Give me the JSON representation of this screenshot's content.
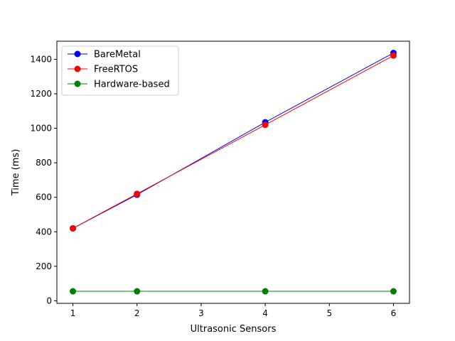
{
  "chart_data": {
    "type": "line",
    "title": "",
    "xlabel": "Ultrasonic Sensors",
    "ylabel": "Time (ms)",
    "xlim": [
      0.75,
      6.25
    ],
    "ylim": [
      -15,
      1505
    ],
    "xticks": [
      1,
      2,
      3,
      4,
      5,
      6
    ],
    "yticks": [
      0,
      200,
      400,
      600,
      800,
      1000,
      1200,
      1400
    ],
    "grid": false,
    "legend_position": "top-left",
    "series": [
      {
        "name": "BareMetal",
        "color": "#0000ff",
        "marker": "circle",
        "x": [
          1,
          2,
          4,
          6
        ],
        "y": [
          420,
          615,
          1035,
          1437
        ]
      },
      {
        "name": "FreeRTOS",
        "color": "#ff0000",
        "marker": "circle",
        "x": [
          1,
          2,
          4,
          6
        ],
        "y": [
          420,
          620,
          1020,
          1422
        ]
      },
      {
        "name": "Hardware-based",
        "color": "#008000",
        "marker": "circle",
        "x": [
          1,
          2,
          4,
          6
        ],
        "y": [
          55,
          55,
          55,
          55
        ]
      }
    ]
  }
}
